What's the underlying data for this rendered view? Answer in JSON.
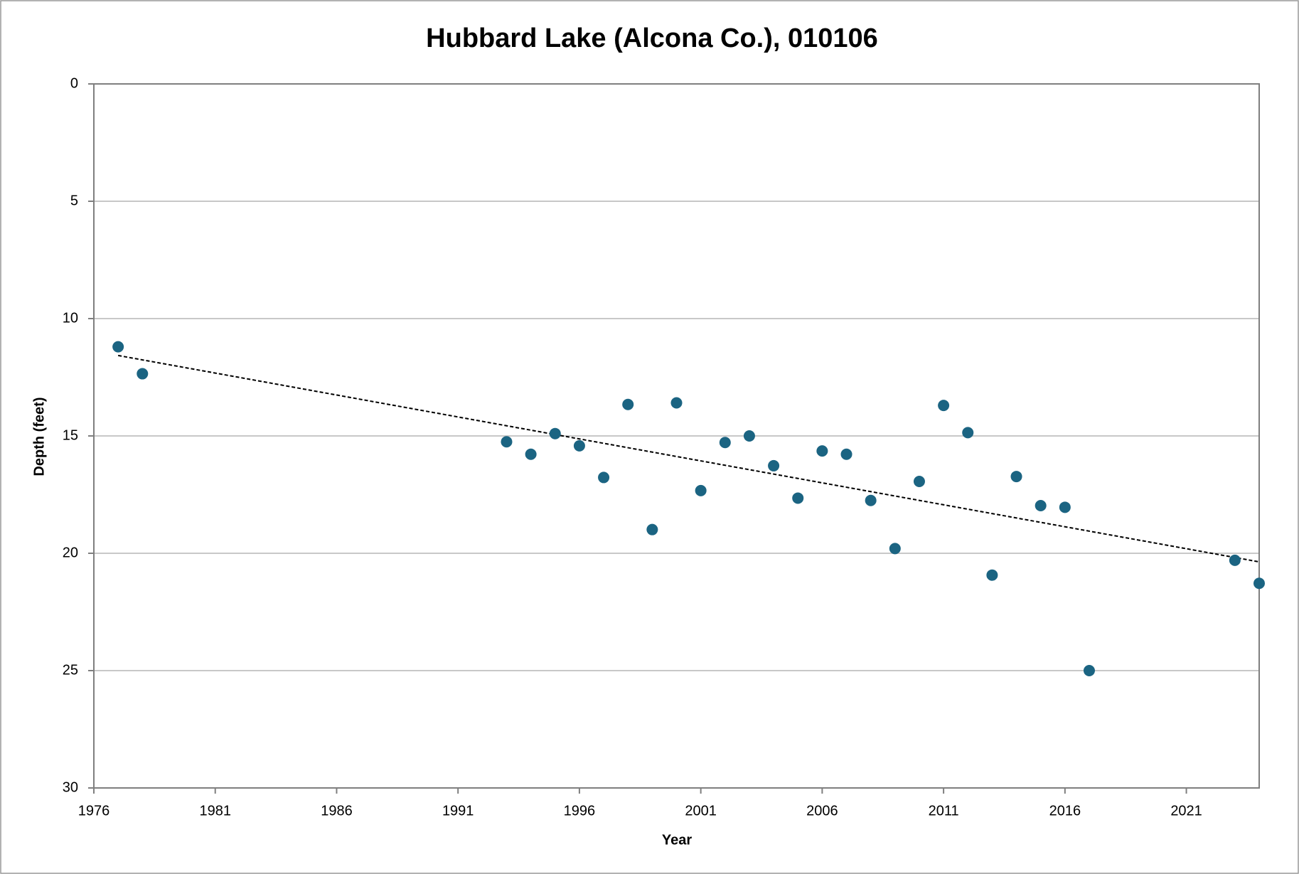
{
  "chart_data": {
    "type": "scatter",
    "title": "Hubbard Lake (Alcona Co.), 010106",
    "x_label": "Year",
    "y_label": "Depth (feet)",
    "x": [
      1977,
      1978,
      1993,
      1994,
      1995,
      1996,
      1997,
      1998,
      1999,
      2000,
      2001,
      2002,
      2003,
      2004,
      2005,
      2006,
      2007,
      2008,
      2009,
      2010,
      2011,
      2012,
      2013,
      2014,
      2015,
      2016,
      2017,
      2023,
      2024
    ],
    "values": [
      11.2,
      12.35,
      15.25,
      15.78,
      14.9,
      15.42,
      16.77,
      13.66,
      18.99,
      13.59,
      17.33,
      15.28,
      15.0,
      16.27,
      17.65,
      15.64,
      15.78,
      17.75,
      19.8,
      16.94,
      13.7,
      14.86,
      20.93,
      16.73,
      17.97,
      18.04,
      25.0,
      20.3,
      21.28
    ],
    "color": "#1b6482",
    "xlim": [
      1976,
      2024
    ],
    "xticks": [
      1976,
      1981,
      1986,
      1991,
      1996,
      2001,
      2006,
      2011,
      2016,
      2021
    ],
    "ylim": [
      0,
      30
    ],
    "yticks": [
      0,
      5,
      10,
      15,
      20,
      25,
      30
    ],
    "y_reversed": true,
    "grid": true,
    "trendline": true
  }
}
